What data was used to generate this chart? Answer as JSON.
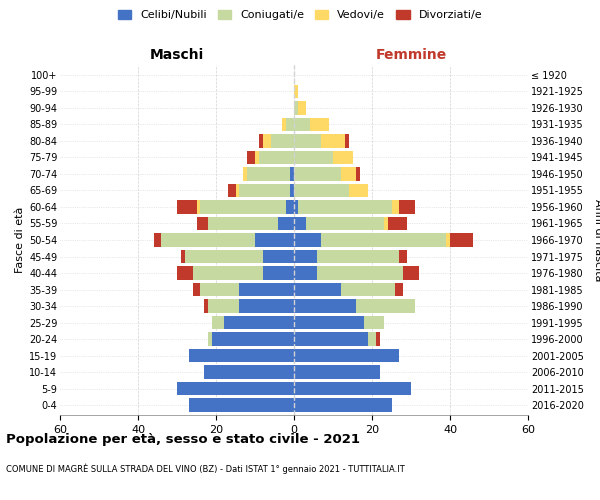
{
  "age_groups": [
    "0-4",
    "5-9",
    "10-14",
    "15-19",
    "20-24",
    "25-29",
    "30-34",
    "35-39",
    "40-44",
    "45-49",
    "50-54",
    "55-59",
    "60-64",
    "65-69",
    "70-74",
    "75-79",
    "80-84",
    "85-89",
    "90-94",
    "95-99",
    "100+"
  ],
  "birth_years": [
    "2016-2020",
    "2011-2015",
    "2006-2010",
    "2001-2005",
    "1996-2000",
    "1991-1995",
    "1986-1990",
    "1981-1985",
    "1976-1980",
    "1971-1975",
    "1966-1970",
    "1961-1965",
    "1956-1960",
    "1951-1955",
    "1946-1950",
    "1941-1945",
    "1936-1940",
    "1931-1935",
    "1926-1930",
    "1921-1925",
    "≤ 1920"
  ],
  "maschi": {
    "celibi": [
      27,
      30,
      23,
      27,
      21,
      18,
      14,
      14,
      8,
      8,
      10,
      4,
      2,
      1,
      1,
      0,
      0,
      0,
      0,
      0,
      0
    ],
    "coniugati": [
      0,
      0,
      0,
      0,
      1,
      3,
      8,
      10,
      18,
      20,
      24,
      18,
      22,
      13,
      11,
      9,
      6,
      2,
      0,
      0,
      0
    ],
    "vedovi": [
      0,
      0,
      0,
      0,
      0,
      0,
      0,
      0,
      0,
      0,
      0,
      0,
      1,
      1,
      1,
      1,
      2,
      1,
      0,
      0,
      0
    ],
    "divorziati": [
      0,
      0,
      0,
      0,
      0,
      0,
      1,
      2,
      4,
      1,
      2,
      3,
      5,
      2,
      0,
      2,
      1,
      0,
      0,
      0,
      0
    ]
  },
  "femmine": {
    "nubili": [
      25,
      30,
      22,
      27,
      19,
      18,
      16,
      12,
      6,
      6,
      7,
      3,
      1,
      0,
      0,
      0,
      0,
      0,
      0,
      0,
      0
    ],
    "coniugate": [
      0,
      0,
      0,
      0,
      2,
      5,
      15,
      14,
      22,
      21,
      32,
      20,
      24,
      14,
      12,
      10,
      7,
      4,
      1,
      0,
      0
    ],
    "vedove": [
      0,
      0,
      0,
      0,
      0,
      0,
      0,
      0,
      0,
      0,
      1,
      1,
      2,
      5,
      4,
      5,
      6,
      5,
      2,
      1,
      0
    ],
    "divorziate": [
      0,
      0,
      0,
      0,
      1,
      0,
      0,
      2,
      4,
      2,
      6,
      5,
      4,
      0,
      1,
      0,
      1,
      0,
      0,
      0,
      0
    ]
  },
  "colors": {
    "celibi": "#4472C4",
    "coniugati": "#C5D9A0",
    "vedovi": "#FFD966",
    "divorziati": "#C0392B"
  },
  "xlim": 60,
  "title1": "Popolazione per età, sesso e stato civile - 2021",
  "title2": "COMUNE DI MAGRÈ SULLA STRADA DEL VINO (BZ) - Dati ISTAT 1° gennaio 2021 - TUTTITALIA.IT",
  "legend_labels": [
    "Celibi/Nubili",
    "Coniugati/e",
    "Vedovi/e",
    "Divorziati/e"
  ],
  "legend_colors": [
    "#4472C4",
    "#C5D9A0",
    "#FFD966",
    "#C0392B"
  ],
  "ylabel_left": "Fasce di età",
  "ylabel_right": "Anni di nascita",
  "label_maschi": "Maschi",
  "label_femmine": "Femmine",
  "femmine_color": "#C0392B"
}
